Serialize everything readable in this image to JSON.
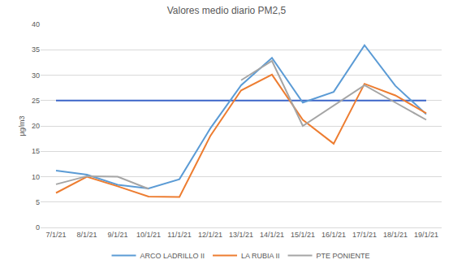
{
  "chart_data": {
    "type": "line",
    "title": "Valores medio diario PM2,5",
    "y_label": "µg/m3",
    "categories": [
      "7/1/21",
      "8/1/21",
      "9/1/21",
      "10/1/21",
      "11/1/21",
      "12/1/21",
      "13/1/21",
      "14/1/21",
      "15/1/21",
      "16/1/21",
      "17/1/21",
      "18/1/21",
      "19/1/21"
    ],
    "series": [
      {
        "values": [
          25,
          25,
          25,
          25,
          25,
          25,
          25,
          25,
          25,
          25,
          25,
          25,
          25
        ],
        "color": "#3b64c8"
      },
      {
        "name": "ARCO LADRILLO II",
        "color": "#5b9bd5",
        "values": [
          11.2,
          10.4,
          8.4,
          7.7,
          9.5,
          19.5,
          28,
          33.4,
          24.6,
          26.7,
          35.9,
          27.9,
          22.3
        ]
      },
      {
        "name": "LA RUBIA II",
        "color": "#ed7d31",
        "values": [
          6.8,
          10,
          8.1,
          6.1,
          6,
          18,
          27,
          30.1,
          21.2,
          16.5,
          28.3,
          26,
          22.5
        ]
      },
      {
        "name": "PTE PONIENTE",
        "color": "#a5a5a5",
        "values": [
          8.5,
          10.1,
          10,
          7.6,
          null,
          null,
          29,
          32.8,
          20,
          24,
          28,
          24.6,
          21.2
        ]
      }
    ],
    "ylim": [
      0,
      40
    ],
    "yticks": [
      0,
      5,
      10,
      15,
      20,
      25,
      30,
      35,
      40
    ],
    "grid": true,
    "legend": "bottom"
  }
}
